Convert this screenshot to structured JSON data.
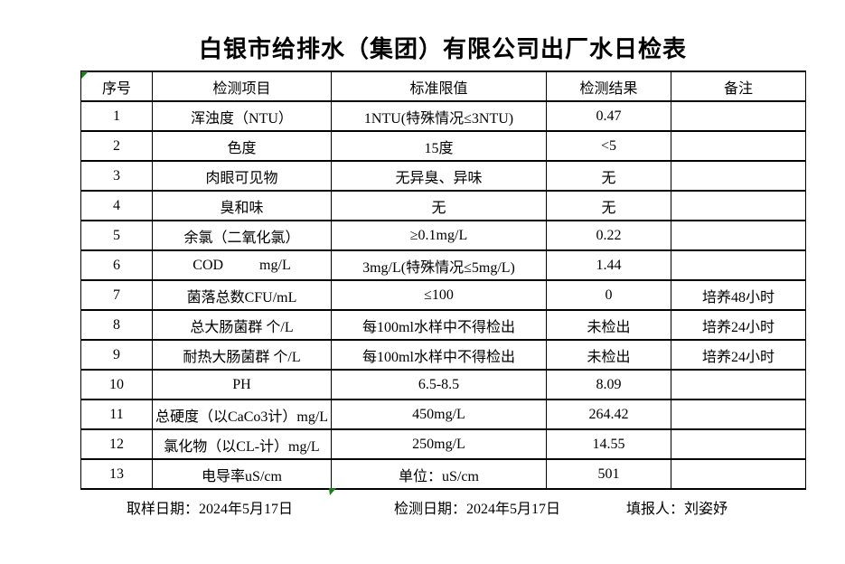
{
  "title": "白银市给排水（集团）有限公司出厂水日检表",
  "table": {
    "headers": [
      "序号",
      "检测项目",
      "标准限值",
      "检测结果",
      "备注"
    ],
    "rows": [
      [
        "1",
        "浑浊度（NTU）",
        "1NTU(特殊情况≤3NTU)",
        "0.47",
        ""
      ],
      [
        "2",
        "色度",
        "15度",
        "<5",
        ""
      ],
      [
        "3",
        "肉眼可见物",
        "无异臭、异味",
        "无",
        ""
      ],
      [
        "4",
        "臭和味",
        "无",
        "无",
        ""
      ],
      [
        "5",
        "余氯（二氧化氯）",
        "≥0.1mg/L",
        "0.22",
        ""
      ],
      [
        "6",
        "COD          mg/L",
        "3mg/L(特殊情况≤5mg/L)",
        "1.44",
        ""
      ],
      [
        "7",
        "菌落总数CFU/mL",
        "≤100",
        "0",
        "培养48小时"
      ],
      [
        "8",
        "总大肠菌群 个/L",
        "每100ml水样中不得检出",
        "未检出",
        "培养24小时"
      ],
      [
        "9",
        "耐热大肠菌群 个/L",
        "每100ml水样中不得检出",
        "未检出",
        "培养24小时"
      ],
      [
        "10",
        "PH",
        "6.5-8.5",
        "8.09",
        ""
      ],
      [
        "11",
        "总硬度（以CaCo3计）mg/L",
        "450mg/L",
        "264.42",
        ""
      ],
      [
        "12",
        "氯化物（以CL-计）mg/L",
        "250mg/L",
        "14.55",
        ""
      ],
      [
        "13",
        "电导率uS/cm",
        "单位：uS/cm",
        "501",
        ""
      ]
    ]
  },
  "footer": {
    "sampling_date": "取样日期：2024年5月17日",
    "testing_date": "检测日期：2024年5月17日",
    "reporter": "填报人：刘姿妤"
  },
  "colors": {
    "marker_green": "#1e7a1e",
    "border": "#000000",
    "background": "#ffffff",
    "text": "#000000"
  }
}
